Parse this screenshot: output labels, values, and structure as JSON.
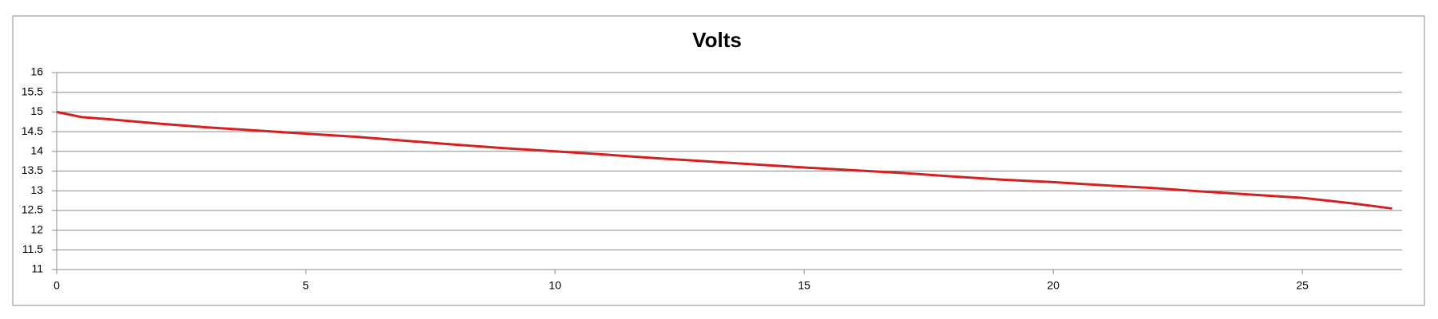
{
  "chart_data": {
    "type": "line",
    "title": "Volts",
    "x": [
      0,
      0.5,
      1,
      2,
      3,
      4,
      5,
      6,
      7,
      8,
      9,
      10,
      11,
      12,
      13,
      14,
      15,
      16,
      17,
      18,
      19,
      20,
      21,
      22,
      23,
      24,
      25,
      26,
      26.8
    ],
    "values": [
      15.0,
      14.87,
      14.82,
      14.71,
      14.61,
      14.53,
      14.45,
      14.37,
      14.27,
      14.17,
      14.08,
      14.0,
      13.92,
      13.83,
      13.75,
      13.67,
      13.59,
      13.52,
      13.45,
      13.36,
      13.28,
      13.22,
      13.14,
      13.07,
      12.98,
      12.9,
      12.82,
      12.68,
      12.55
    ],
    "color": "#d42020",
    "xlim": [
      0,
      27
    ],
    "xticks": [
      0,
      5,
      10,
      15,
      20,
      25
    ],
    "ylim": [
      11,
      16
    ],
    "yticks": [
      11,
      11.5,
      12,
      12.5,
      13,
      13.5,
      14,
      14.5,
      15,
      15.5,
      16
    ],
    "grid": true
  }
}
